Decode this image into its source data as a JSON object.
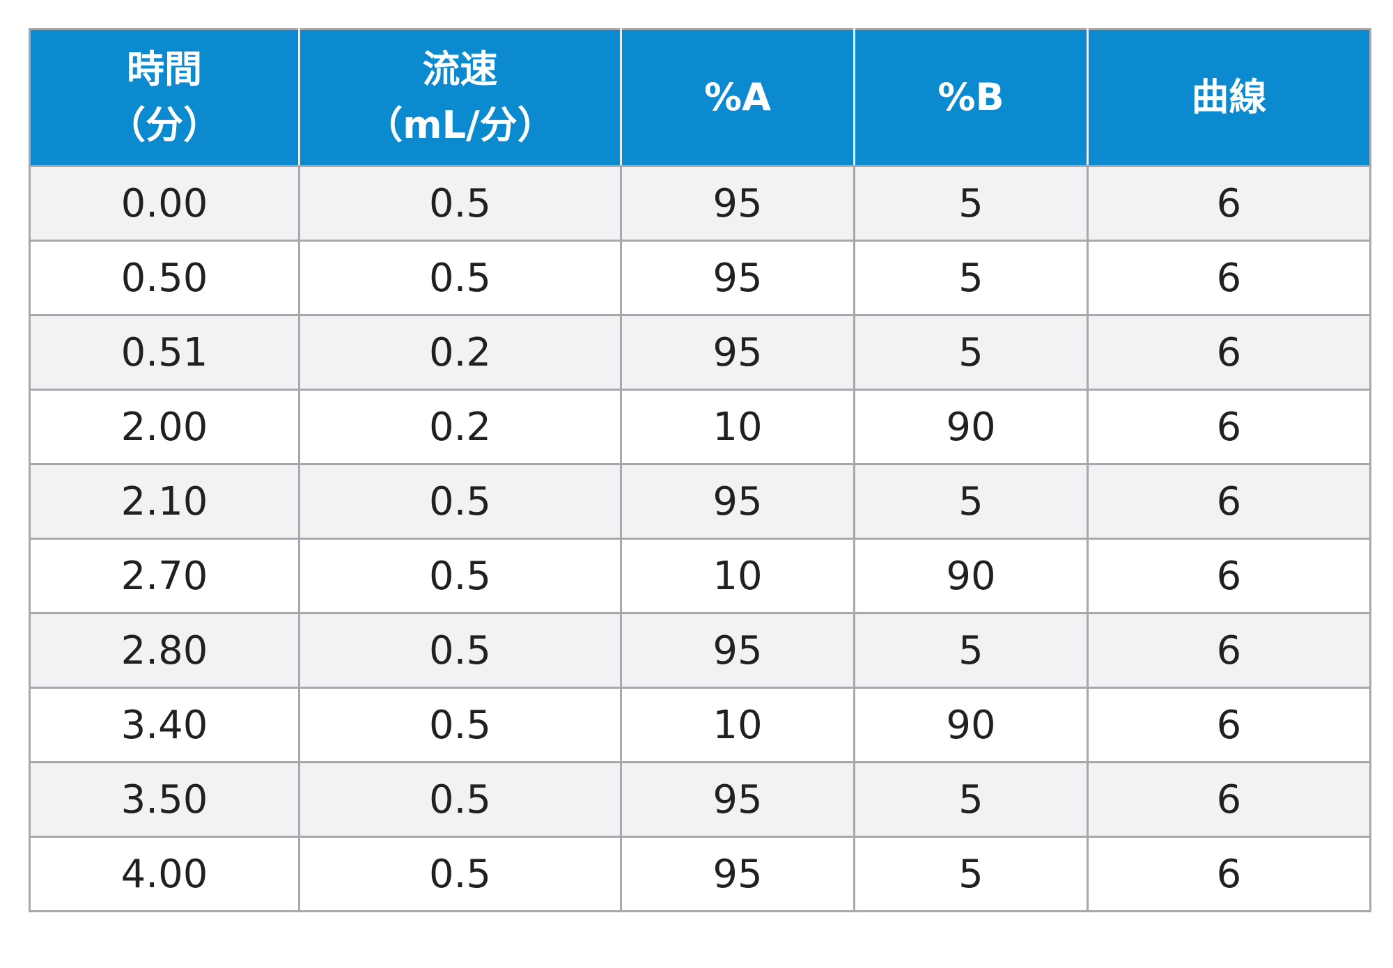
{
  "table": {
    "headers": [
      {
        "line1": "時間",
        "line2": "（分）"
      },
      {
        "line1": "流速",
        "line2": "（mL/分）"
      },
      {
        "line1": "%A",
        "line2": ""
      },
      {
        "line1": "%B",
        "line2": ""
      },
      {
        "line1": "曲線",
        "line2": ""
      }
    ],
    "rows": [
      [
        "0.00",
        "0.5",
        "95",
        "5",
        "6"
      ],
      [
        "0.50",
        "0.5",
        "95",
        "5",
        "6"
      ],
      [
        "0.51",
        "0.2",
        "95",
        "5",
        "6"
      ],
      [
        "2.00",
        "0.2",
        "10",
        "90",
        "6"
      ],
      [
        "2.10",
        "0.5",
        "95",
        "5",
        "6"
      ],
      [
        "2.70",
        "0.5",
        "10",
        "90",
        "6"
      ],
      [
        "2.80",
        "0.5",
        "95",
        "5",
        "6"
      ],
      [
        "3.40",
        "0.5",
        "10",
        "90",
        "6"
      ],
      [
        "3.50",
        "0.5",
        "95",
        "5",
        "6"
      ],
      [
        "4.00",
        "0.5",
        "95",
        "5",
        "6"
      ]
    ]
  },
  "colors": {
    "header_bg": "#0b8ad0",
    "header_text": "#ffffff",
    "row_alt_bg": "#f2f2f4",
    "border": "#a6a8ab"
  }
}
